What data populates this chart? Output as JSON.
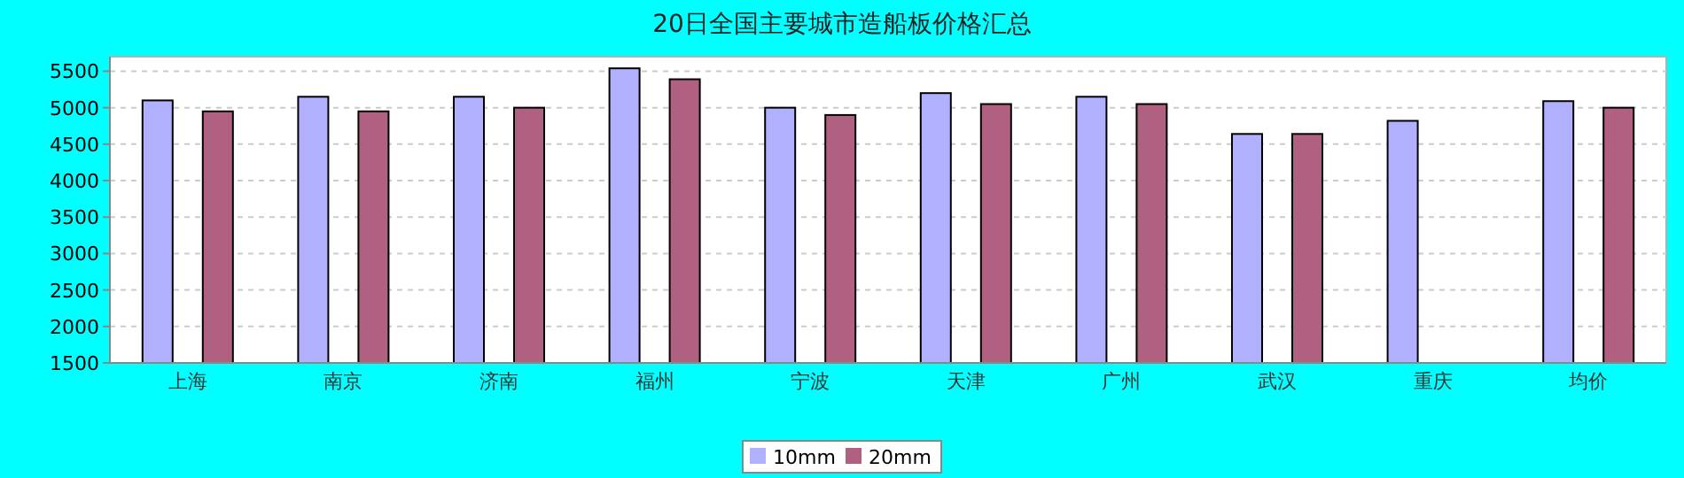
{
  "chart_data": {
    "type": "bar",
    "title": "20日全国主要城市造船板价格汇总",
    "categories": [
      "上海",
      "南京",
      "济南",
      "福州",
      "宁波",
      "天津",
      "广州",
      "武汉",
      "重庆",
      "均价"
    ],
    "series": [
      {
        "name": "10mm",
        "color": "#b0b0ff",
        "values": [
          5100,
          5150,
          5150,
          5540,
          5000,
          5200,
          5150,
          4640,
          4820,
          5090
        ]
      },
      {
        "name": "20mm",
        "color": "#b06080",
        "values": [
          4950,
          4950,
          5000,
          5390,
          4900,
          5050,
          5050,
          4640,
          null,
          5000
        ]
      }
    ],
    "ylim": [
      1500,
      5700
    ],
    "yticks": [
      1500,
      2000,
      2500,
      3000,
      3500,
      4000,
      4500,
      5000,
      5500
    ],
    "grid": "y",
    "legend": "bottom"
  }
}
